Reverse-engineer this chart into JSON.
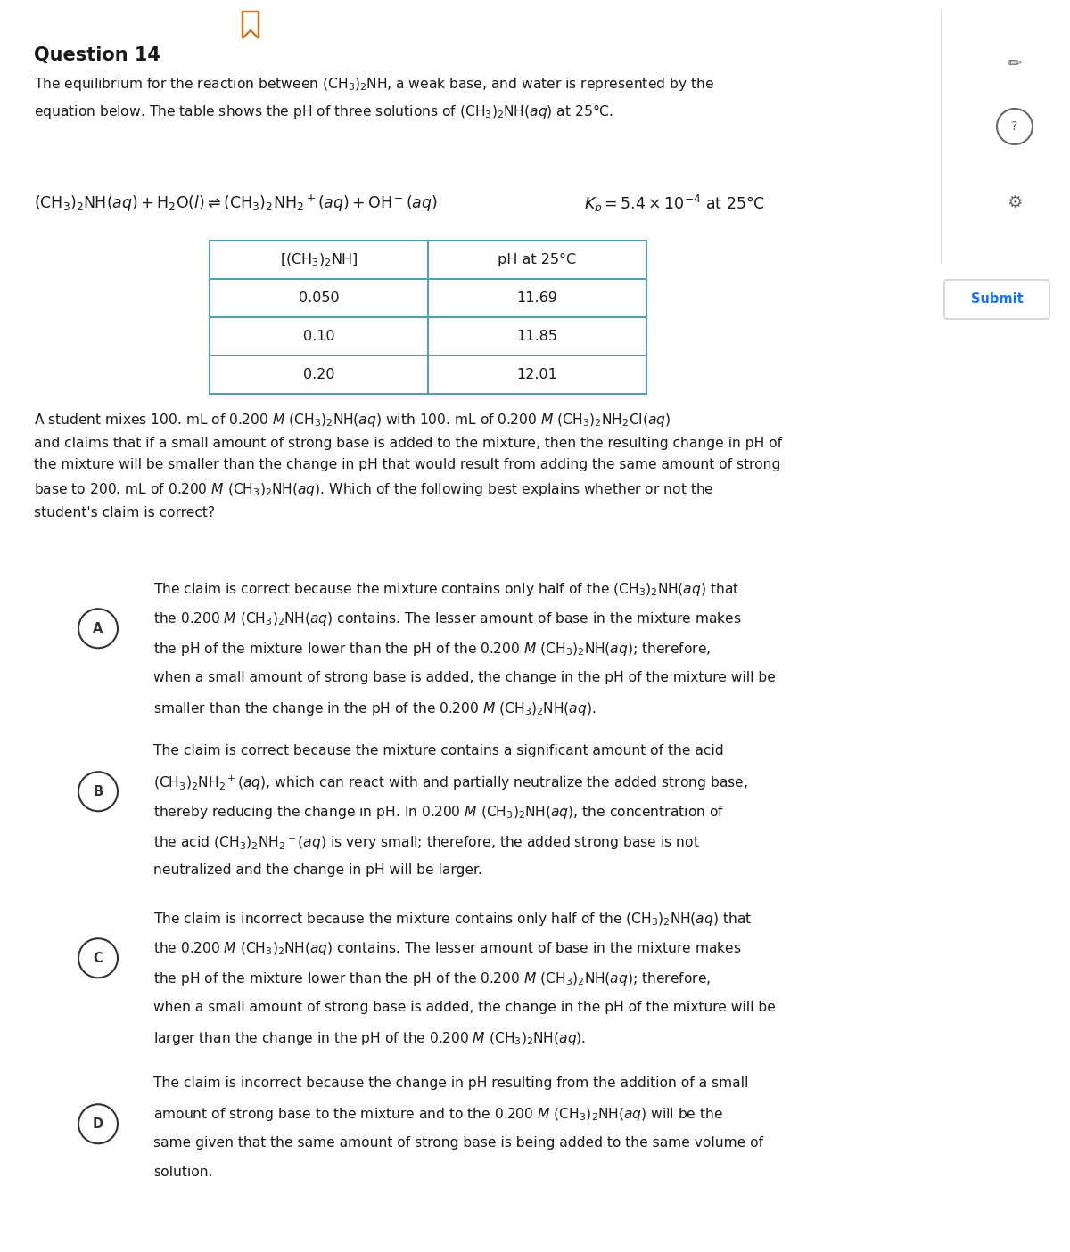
{
  "title": "Question 14",
  "bg_color": "#ffffff",
  "text_color": "#1a1a1a",
  "bookmark_color": "#c97b2a",
  "circle_color": "#333333",
  "table_border_color": "#5a9aaa",
  "submit_color": "#1a73e8",
  "submit_text": "Submit",
  "sidebar_icon_color": "#666666",
  "table_headers": [
    "[(CH₃)₂NH]",
    "pH at 25°C"
  ],
  "table_data": [
    [
      "0.050",
      "11.69"
    ],
    [
      "0.10",
      "11.85"
    ],
    [
      "0.20",
      "12.01"
    ]
  ]
}
